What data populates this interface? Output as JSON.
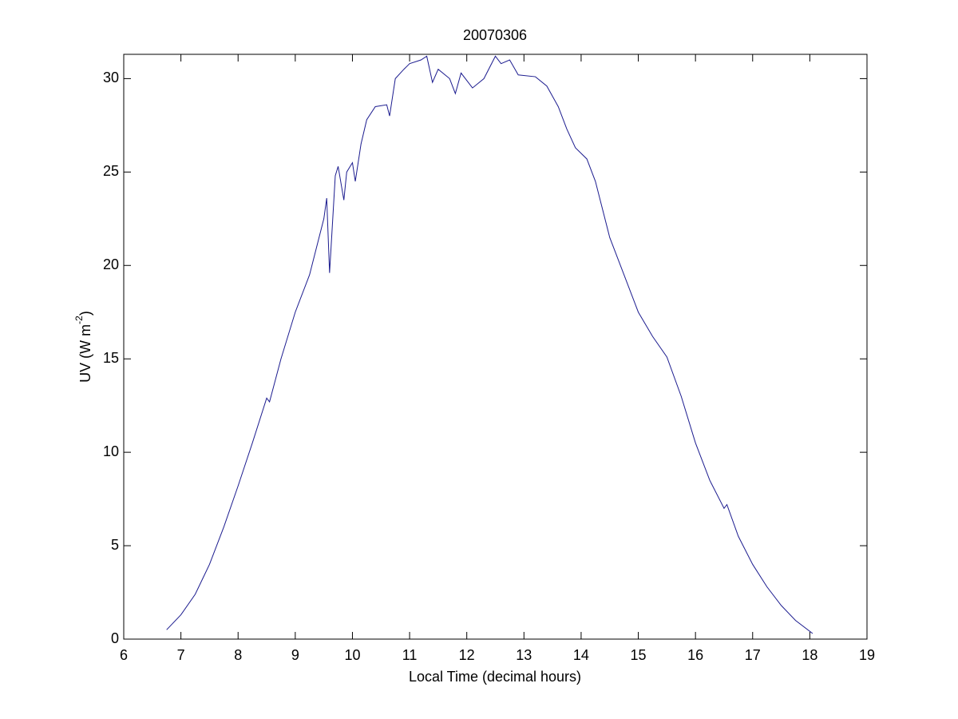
{
  "chart_data": {
    "type": "line",
    "title": "20070306",
    "xlabel": "Local Time (decimal hours)",
    "ylabel": [
      "UV (W m",
      "-2",
      ")"
    ],
    "x": [
      6.75,
      7.0,
      7.25,
      7.5,
      7.75,
      8.0,
      8.25,
      8.5,
      8.55,
      8.75,
      9.0,
      9.25,
      9.5,
      9.55,
      9.6,
      9.7,
      9.75,
      9.85,
      9.9,
      10.0,
      10.05,
      10.15,
      10.25,
      10.4,
      10.6,
      10.65,
      10.75,
      10.9,
      11.0,
      11.2,
      11.3,
      11.4,
      11.5,
      11.7,
      11.8,
      11.9,
      12.1,
      12.3,
      12.5,
      12.6,
      12.75,
      12.9,
      13.2,
      13.4,
      13.6,
      13.75,
      13.9,
      14.1,
      14.25,
      14.5,
      14.75,
      15.0,
      15.25,
      15.5,
      15.75,
      16.0,
      16.25,
      16.5,
      16.55,
      16.75,
      17.0,
      17.25,
      17.5,
      17.75,
      18.05
    ],
    "series": [
      {
        "name": "UV",
        "color": "#1c1c8f",
        "values": [
          0.5,
          1.3,
          2.4,
          4.0,
          6.0,
          8.2,
          10.5,
          12.9,
          12.7,
          15.0,
          17.5,
          19.5,
          22.5,
          23.6,
          19.6,
          24.8,
          25.3,
          23.5,
          25.0,
          25.5,
          24.5,
          26.5,
          27.8,
          28.5,
          28.6,
          28.0,
          30.0,
          30.5,
          30.8,
          31.0,
          31.2,
          29.8,
          30.5,
          30.0,
          29.2,
          30.3,
          29.5,
          30.0,
          31.2,
          30.8,
          31.0,
          30.2,
          30.1,
          29.6,
          28.5,
          27.3,
          26.3,
          25.7,
          24.5,
          21.5,
          19.5,
          17.5,
          16.2,
          15.1,
          13.0,
          10.5,
          8.5,
          7.0,
          7.2,
          5.5,
          4.0,
          2.8,
          1.8,
          1.0,
          0.3
        ]
      }
    ],
    "xlim": [
      6,
      19
    ],
    "xticks": [
      6,
      7,
      8,
      9,
      10,
      11,
      12,
      13,
      14,
      15,
      16,
      17,
      18,
      19
    ],
    "ylim": [
      0,
      31.3
    ],
    "yticks": [
      0,
      5,
      10,
      15,
      20,
      25,
      30
    ],
    "grid": false
  }
}
